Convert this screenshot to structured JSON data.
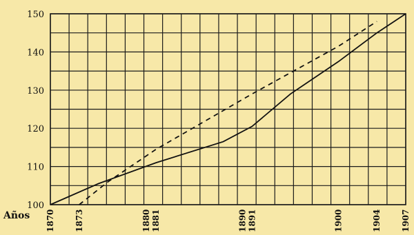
{
  "chart_data": {
    "type": "line",
    "xlabel": "Años",
    "ylabel": "",
    "title": "",
    "xlim": [
      1870,
      1907
    ],
    "ylim": [
      100,
      150
    ],
    "y_ticks": [
      100,
      110,
      120,
      130,
      140,
      150
    ],
    "x_ticks": [
      1870,
      1873,
      1880,
      1881,
      1890,
      1891,
      1900,
      1904,
      1907
    ],
    "x_tick_labels": [
      "1870",
      "1873",
      "1880",
      "1881",
      "1890",
      "1891",
      "1900",
      "1904",
      "1907"
    ],
    "grid": true,
    "series": [
      {
        "style": "solid",
        "x": [
          1870,
          1875,
          1881,
          1888,
          1891,
          1895,
          1900,
          1904,
          1907
        ],
        "y": [
          100,
          105.5,
          111,
          116.5,
          120.5,
          129,
          137.5,
          145,
          150
        ]
      },
      {
        "style": "dashed",
        "x": [
          1873,
          1876,
          1881,
          1891,
          1900,
          1904
        ],
        "y": [
          100,
          106,
          114.5,
          129,
          141.5,
          148
        ]
      }
    ]
  }
}
